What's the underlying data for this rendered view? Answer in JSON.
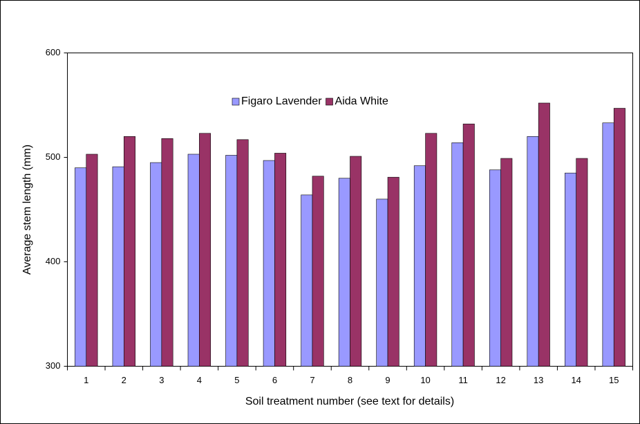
{
  "chart_data": {
    "type": "bar",
    "x_label": "Soil treatment number (see text for details)",
    "y_label": "Average stem length (mm)",
    "categories": [
      "1",
      "2",
      "3",
      "4",
      "5",
      "6",
      "7",
      "8",
      "9",
      "10",
      "11",
      "12",
      "13",
      "14",
      "15"
    ],
    "series": [
      {
        "name": "Figaro Lavender",
        "color": "#9999ff",
        "values": [
          490,
          491,
          495,
          503,
          502,
          497,
          464,
          480,
          460,
          492,
          514,
          488,
          520,
          485,
          533
        ]
      },
      {
        "name": "Aida White",
        "color": "#993366",
        "values": [
          503,
          520,
          518,
          523,
          517,
          504,
          482,
          501,
          481,
          523,
          532,
          499,
          552,
          499,
          547
        ]
      }
    ],
    "ylim": [
      300,
      600
    ],
    "yticks": [
      300,
      400,
      500,
      600
    ],
    "grid": false,
    "legend": "top"
  }
}
